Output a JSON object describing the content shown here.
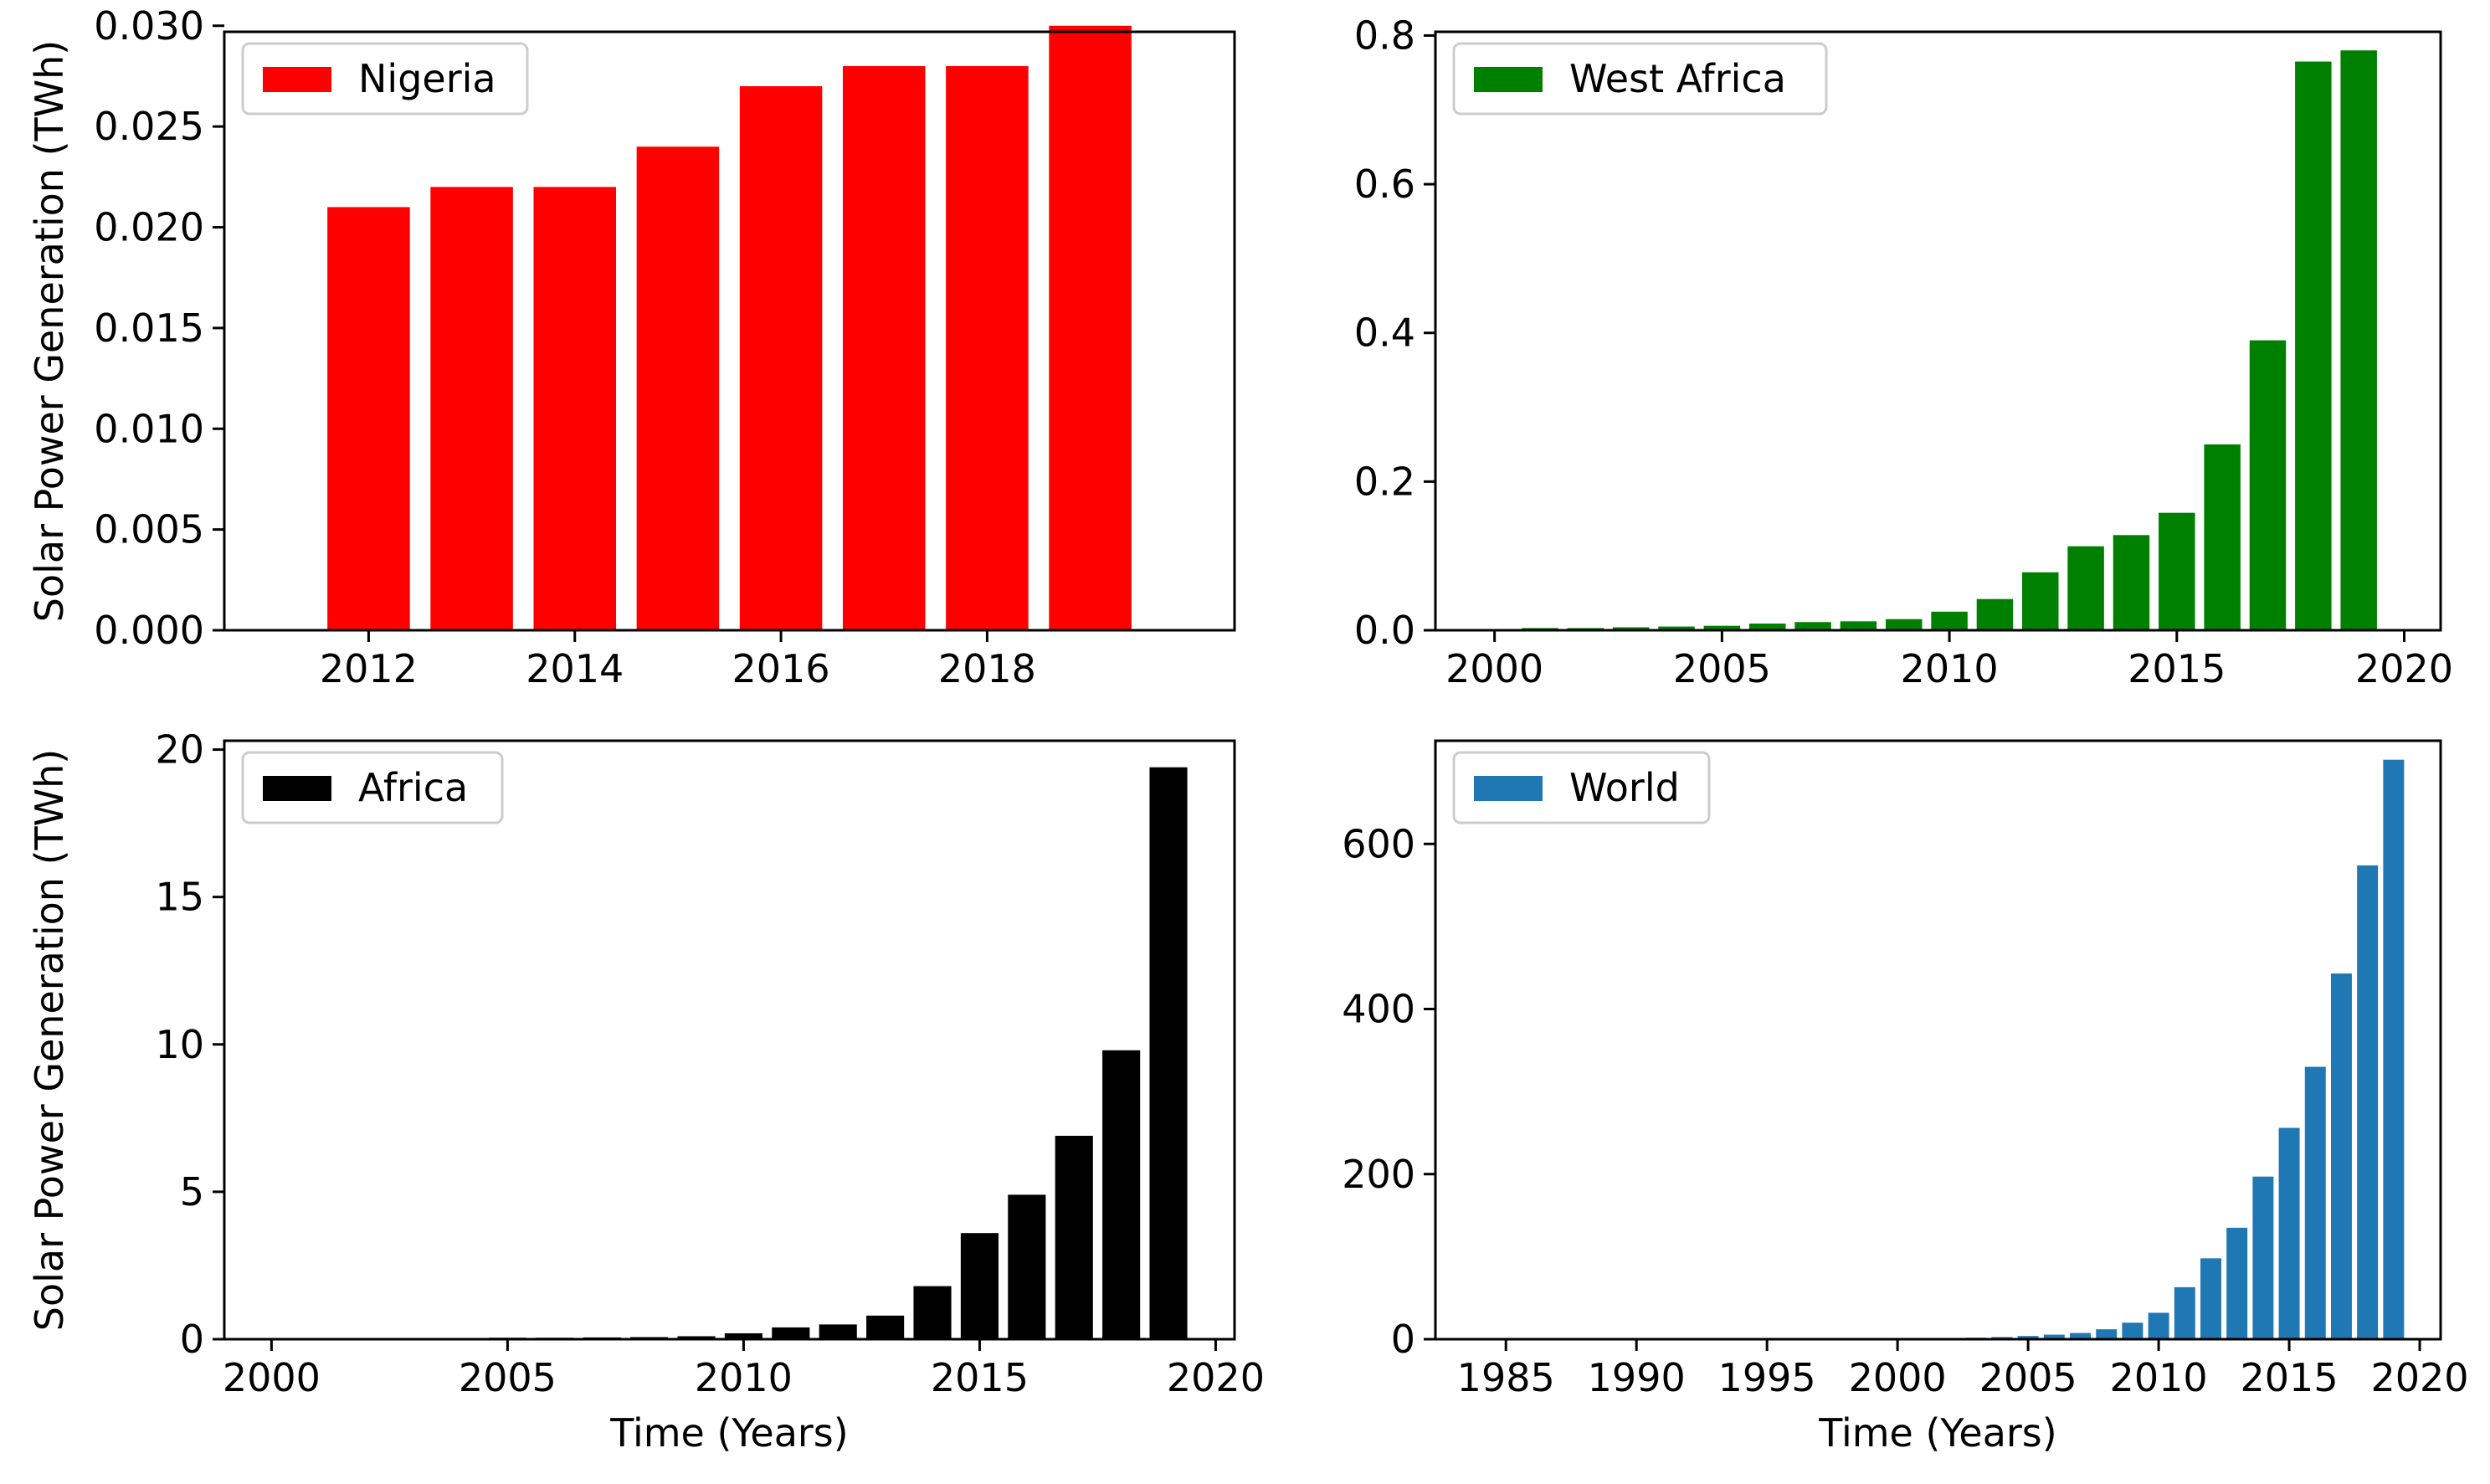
{
  "figure": {
    "ylabel": "Solar Power Generation (TWh)",
    "xlabel": "Time (Years)"
  },
  "chart_data": [
    {
      "id": "nigeria",
      "type": "bar",
      "legend": "Nigeria",
      "legend_position": "top-left",
      "color": "#ff0000",
      "show_ylabel": true,
      "show_xlabel": false,
      "x": [
        2012,
        2013,
        2014,
        2015,
        2016,
        2017,
        2018,
        2019
      ],
      "values": [
        0.021,
        0.022,
        0.022,
        0.024,
        0.027,
        0.028,
        0.028,
        0.03
      ],
      "xlim": [
        2010.6,
        2020.4
      ],
      "ylim": [
        0,
        0.0297
      ],
      "xticks": [
        2012,
        2014,
        2016,
        2018
      ],
      "yticks": [
        0,
        0.005,
        0.01,
        0.015,
        0.02,
        0.025,
        0.03
      ],
      "ytick_labels": [
        "0.000",
        "0.005",
        "0.010",
        "0.015",
        "0.020",
        "0.025",
        "0.030"
      ],
      "bar_width": 0.8
    },
    {
      "id": "west-africa",
      "type": "bar",
      "legend": "West Africa",
      "legend_position": "top-left",
      "color": "#008000",
      "show_ylabel": false,
      "show_xlabel": false,
      "x": [
        2000,
        2001,
        2002,
        2003,
        2004,
        2005,
        2006,
        2007,
        2008,
        2009,
        2010,
        2011,
        2012,
        2013,
        2014,
        2015,
        2016,
        2017,
        2018,
        2019
      ],
      "values": [
        0.001,
        0.003,
        0.003,
        0.004,
        0.005,
        0.006,
        0.009,
        0.011,
        0.012,
        0.015,
        0.025,
        0.042,
        0.078,
        0.113,
        0.128,
        0.158,
        0.25,
        0.39,
        0.765,
        0.78
      ],
      "xlim": [
        1998.7,
        2020.8
      ],
      "ylim": [
        0,
        0.805
      ],
      "xticks": [
        2000,
        2005,
        2010,
        2015,
        2020
      ],
      "yticks": [
        0,
        0.2,
        0.4,
        0.6,
        0.8
      ],
      "ytick_labels": [
        "0.0",
        "0.2",
        "0.4",
        "0.6",
        "0.8"
      ],
      "bar_width": 0.8
    },
    {
      "id": "africa",
      "type": "bar",
      "legend": "Africa",
      "legend_position": "top-left",
      "color": "#000000",
      "show_ylabel": true,
      "show_xlabel": true,
      "x": [
        2000,
        2001,
        2002,
        2003,
        2004,
        2005,
        2006,
        2007,
        2008,
        2009,
        2010,
        2011,
        2012,
        2013,
        2014,
        2015,
        2016,
        2017,
        2018,
        2019
      ],
      "values": [
        0.02,
        0.02,
        0.03,
        0.03,
        0.04,
        0.05,
        0.05,
        0.06,
        0.07,
        0.1,
        0.2,
        0.4,
        0.5,
        0.8,
        1.8,
        3.6,
        4.9,
        6.9,
        9.8,
        19.4
      ],
      "xlim": [
        1999.0,
        2020.4
      ],
      "ylim": [
        0,
        20.3
      ],
      "xticks": [
        2000,
        2005,
        2010,
        2015,
        2020
      ],
      "yticks": [
        0,
        5,
        10,
        15,
        20
      ],
      "ytick_labels": [
        "0",
        "5",
        "10",
        "15",
        "20"
      ],
      "bar_width": 0.8
    },
    {
      "id": "world",
      "type": "bar",
      "legend": "World",
      "legend_position": "top-left",
      "color": "#1f77b4",
      "show_ylabel": false,
      "show_xlabel": true,
      "x": [
        1983,
        1984,
        1985,
        1986,
        1987,
        1988,
        1989,
        1990,
        1991,
        1992,
        1993,
        1994,
        1995,
        1996,
        1997,
        1998,
        1999,
        2000,
        2001,
        2002,
        2003,
        2004,
        2005,
        2006,
        2007,
        2008,
        2009,
        2010,
        2011,
        2012,
        2013,
        2014,
        2015,
        2016,
        2017,
        2018,
        2019
      ],
      "values": [
        0.01,
        0.02,
        0.02,
        0.03,
        0.03,
        0.04,
        0.05,
        0.06,
        0.07,
        0.08,
        0.1,
        0.11,
        0.13,
        0.15,
        0.18,
        0.22,
        0.27,
        0.8,
        1.1,
        1.4,
        1.8,
        2.6,
        3.9,
        5.5,
        7.5,
        12.0,
        20.0,
        32.0,
        63.0,
        98.0,
        135.0,
        197.0,
        256.0,
        330.0,
        443.0,
        574.0,
        702.0
      ],
      "xlim": [
        1982.3,
        2020.8
      ],
      "ylim": [
        0,
        725
      ],
      "xticks": [
        1985,
        1990,
        1995,
        2000,
        2005,
        2010,
        2015,
        2020
      ],
      "yticks": [
        0,
        200,
        400,
        600
      ],
      "ytick_labels": [
        "0",
        "200",
        "400",
        "600"
      ],
      "bar_width": 0.8
    }
  ]
}
